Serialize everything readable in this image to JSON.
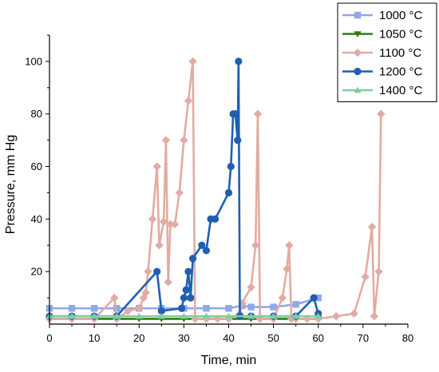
{
  "chart_data": {
    "type": "line",
    "xlabel": "Time, min",
    "ylabel": "Pressure, mm Hg",
    "xlim": [
      0,
      80
    ],
    "ylim": [
      0,
      110
    ],
    "xticks": [
      "0",
      "10",
      "20",
      "30",
      "40",
      "50",
      "60",
      "70",
      "80"
    ],
    "yticks": [
      "20",
      "40",
      "60",
      "80",
      "100"
    ],
    "legend_position": "top-right",
    "grid": false,
    "series": [
      {
        "name": "1000 °C",
        "color": "#8fa8e8",
        "marker": "square",
        "points": [
          [
            0,
            6
          ],
          [
            5,
            6
          ],
          [
            10,
            6
          ],
          [
            15,
            6
          ],
          [
            20,
            6
          ],
          [
            25,
            6
          ],
          [
            30,
            6
          ],
          [
            35,
            6
          ],
          [
            40,
            6
          ],
          [
            43,
            7
          ],
          [
            45,
            6.5
          ],
          [
            50,
            6.5
          ],
          [
            55,
            7.5
          ],
          [
            60,
            10
          ]
        ]
      },
      {
        "name": "1050 °C",
        "color": "#2e7d10",
        "marker": "triangle-down",
        "points": [
          [
            0,
            2
          ],
          [
            5,
            2
          ],
          [
            10,
            2
          ],
          [
            15,
            2
          ],
          [
            20,
            2
          ],
          [
            25,
            2
          ],
          [
            30,
            2
          ],
          [
            35,
            2
          ],
          [
            40,
            2
          ],
          [
            45,
            2
          ],
          [
            50,
            2
          ],
          [
            55,
            2
          ],
          [
            60,
            2
          ]
        ]
      },
      {
        "name": "1100 °C",
        "color": "#e2aca1",
        "marker": "diamond",
        "points": [
          [
            0,
            2
          ],
          [
            5,
            2
          ],
          [
            10,
            2
          ],
          [
            14.5,
            10
          ],
          [
            15,
            2
          ],
          [
            17.5,
            5
          ],
          [
            20,
            6
          ],
          [
            21,
            10
          ],
          [
            21.5,
            12
          ],
          [
            22,
            20
          ],
          [
            23,
            40
          ],
          [
            24,
            60
          ],
          [
            24.5,
            30
          ],
          [
            25.5,
            39
          ],
          [
            26,
            70
          ],
          [
            26.5,
            16
          ],
          [
            27,
            38
          ],
          [
            28,
            38
          ],
          [
            29,
            50
          ],
          [
            30,
            70
          ],
          [
            31,
            85
          ],
          [
            32,
            100
          ],
          [
            32.5,
            2
          ],
          [
            35,
            2
          ],
          [
            37.5,
            2
          ],
          [
            40,
            2
          ],
          [
            42.5,
            4
          ],
          [
            43,
            8
          ],
          [
            45,
            14
          ],
          [
            46,
            30
          ],
          [
            46.5,
            80
          ],
          [
            47,
            2
          ],
          [
            50,
            2
          ],
          [
            52,
            10
          ],
          [
            53,
            21
          ],
          [
            53.5,
            30
          ],
          [
            54,
            2
          ],
          [
            55,
            2
          ],
          [
            57.5,
            2
          ],
          [
            60,
            2
          ],
          [
            64,
            3
          ],
          [
            68,
            4
          ],
          [
            70.5,
            18
          ],
          [
            72,
            37
          ],
          [
            72.5,
            3
          ],
          [
            73.5,
            20
          ],
          [
            74,
            80
          ]
        ]
      },
      {
        "name": "1200 °C",
        "color": "#1f5fb2",
        "marker": "circle",
        "points": [
          [
            0,
            3
          ],
          [
            5,
            3
          ],
          [
            10,
            3
          ],
          [
            15,
            3
          ],
          [
            24,
            20
          ],
          [
            25,
            5
          ],
          [
            29.5,
            6
          ],
          [
            30,
            10
          ],
          [
            30.5,
            13
          ],
          [
            31,
            20
          ],
          [
            31.5,
            10
          ],
          [
            32,
            25
          ],
          [
            34,
            30
          ],
          [
            35,
            28
          ],
          [
            36,
            40
          ],
          [
            37,
            40
          ],
          [
            40,
            50
          ],
          [
            40.5,
            60
          ],
          [
            41,
            80
          ],
          [
            41.5,
            80
          ],
          [
            42,
            70
          ],
          [
            42.2,
            100
          ],
          [
            42.5,
            3
          ],
          [
            45,
            3
          ],
          [
            50,
            3
          ],
          [
            55,
            3
          ],
          [
            59,
            10
          ],
          [
            60,
            4
          ]
        ]
      },
      {
        "name": "1400 °C",
        "color": "#7fcf9d",
        "marker": "triangle-up",
        "points": [
          [
            0,
            3
          ],
          [
            5,
            3
          ],
          [
            10,
            3
          ],
          [
            15,
            3
          ],
          [
            20,
            3
          ],
          [
            25,
            3
          ],
          [
            30,
            3
          ],
          [
            35,
            3
          ],
          [
            40,
            3
          ],
          [
            45,
            3
          ],
          [
            50,
            3
          ],
          [
            55,
            3
          ],
          [
            60,
            3
          ]
        ]
      }
    ]
  }
}
